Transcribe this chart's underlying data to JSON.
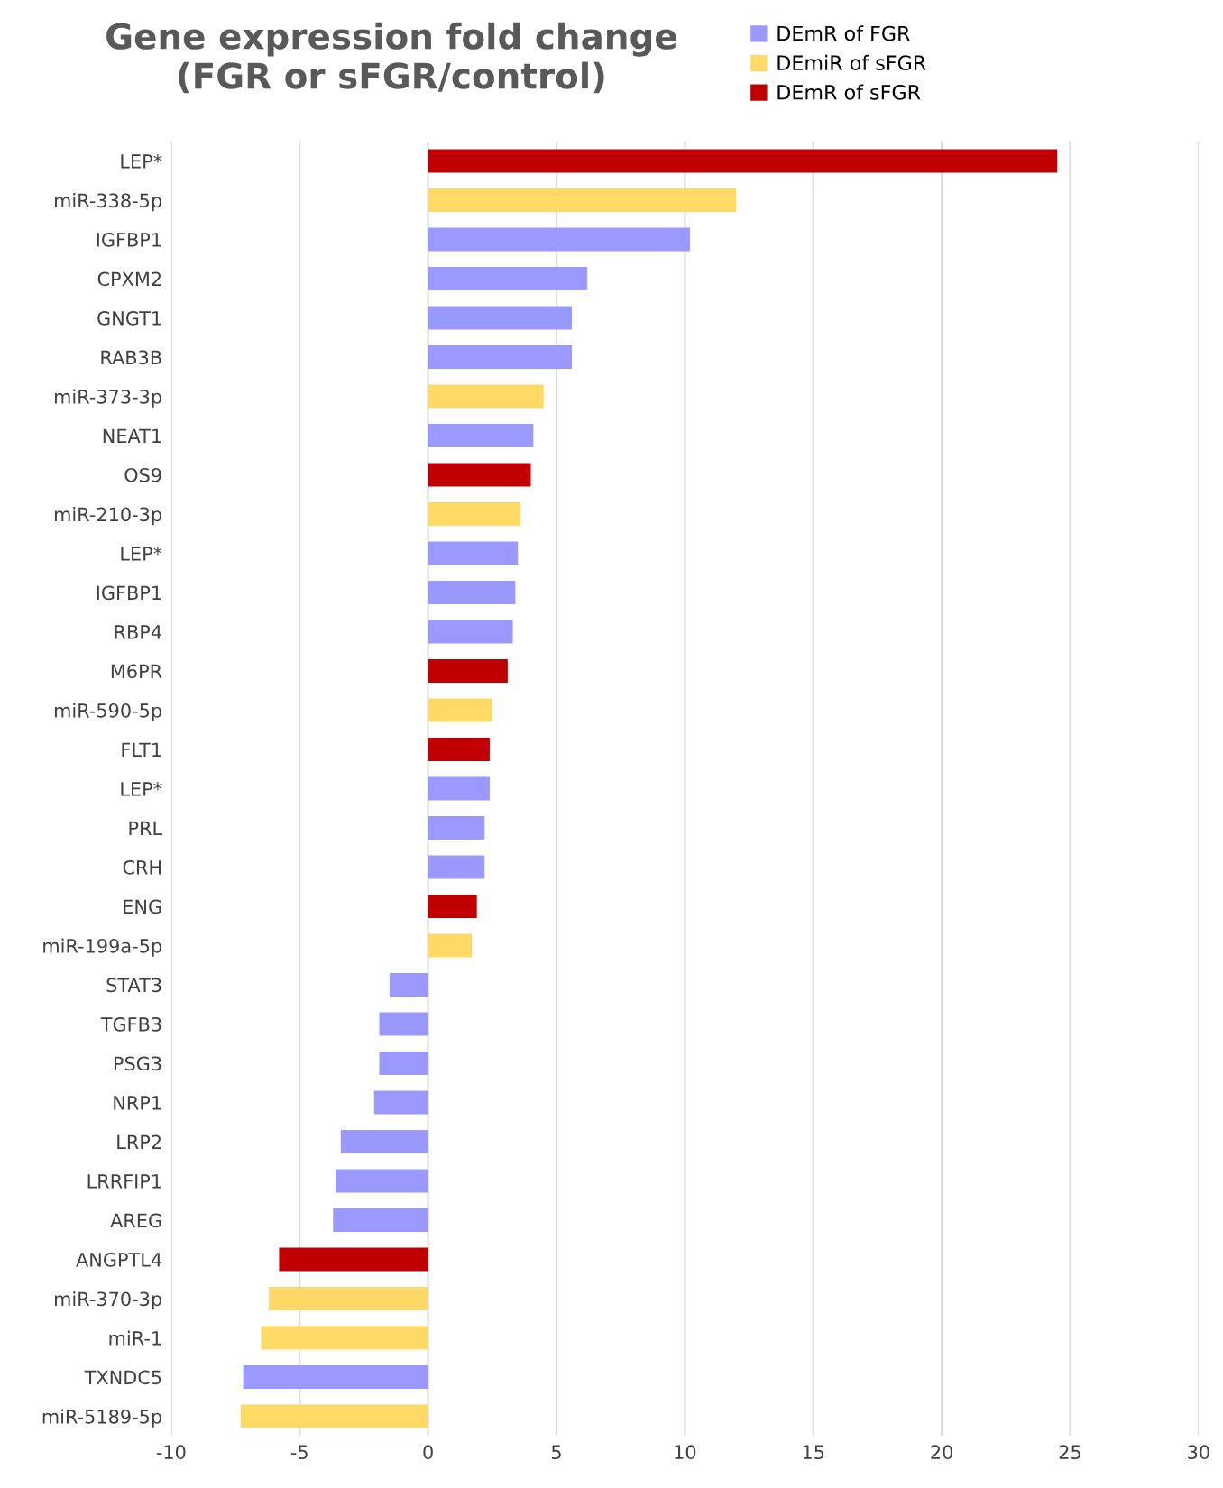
{
  "chart_data": {
    "type": "bar",
    "orientation": "horizontal",
    "stacked": true,
    "title": "Gene expression fold change\n(FGR or sFGR/control)",
    "categories": [
      "LEP*",
      "miR-338-5p",
      "IGFBP1",
      "CPXM2",
      "GNGT1",
      "RAB3B",
      "miR-373-3p",
      "NEAT1",
      "OS9",
      "miR-210-3p",
      "LEP*",
      "IGFBP1",
      "RBP4",
      "M6PR",
      "miR-590-5p",
      "FLT1",
      "LEP*",
      "PRL",
      "CRH",
      "ENG",
      "miR-199a-5p",
      "STAT3",
      "TGFB3",
      "PSG3",
      "NRP1",
      "LRP2",
      "LRRFIP1",
      "AREG",
      "ANGPTL4",
      "miR-370-3p",
      "miR-1",
      "TXNDC5",
      "miR-5189-5p"
    ],
    "series": [
      {
        "name": "DEmR of FGR",
        "color": "#9999ff",
        "values": [
          null,
          null,
          10.2,
          6.2,
          5.6,
          5.6,
          null,
          4.1,
          null,
          null,
          3.5,
          3.4,
          3.3,
          null,
          null,
          null,
          2.4,
          2.2,
          2.2,
          null,
          null,
          -1.5,
          -1.9,
          -1.9,
          -2.1,
          -3.4,
          -3.6,
          -3.7,
          null,
          null,
          null,
          -7.2,
          null
        ]
      },
      {
        "name": "DEmiR of sFGR",
        "color": "#ffd966",
        "values": [
          null,
          12.0,
          null,
          null,
          null,
          null,
          4.5,
          null,
          null,
          3.6,
          null,
          null,
          null,
          null,
          2.5,
          null,
          null,
          null,
          null,
          null,
          1.7,
          null,
          null,
          null,
          null,
          null,
          null,
          null,
          null,
          -6.2,
          -6.5,
          null,
          -7.3
        ]
      },
      {
        "name": "DEmR of sFGR",
        "color": "#c00000",
        "values": [
          24.5,
          null,
          null,
          null,
          null,
          null,
          null,
          null,
          4.0,
          null,
          null,
          null,
          null,
          3.1,
          null,
          2.4,
          null,
          null,
          null,
          1.9,
          null,
          null,
          null,
          null,
          null,
          null,
          null,
          null,
          -5.8,
          null,
          null,
          null,
          null
        ]
      }
    ],
    "xlim": [
      -10,
      30
    ],
    "xticks": [
      -10,
      -5,
      0,
      5,
      10,
      15,
      20,
      25,
      30
    ],
    "grid": "x",
    "legend": "top right"
  }
}
